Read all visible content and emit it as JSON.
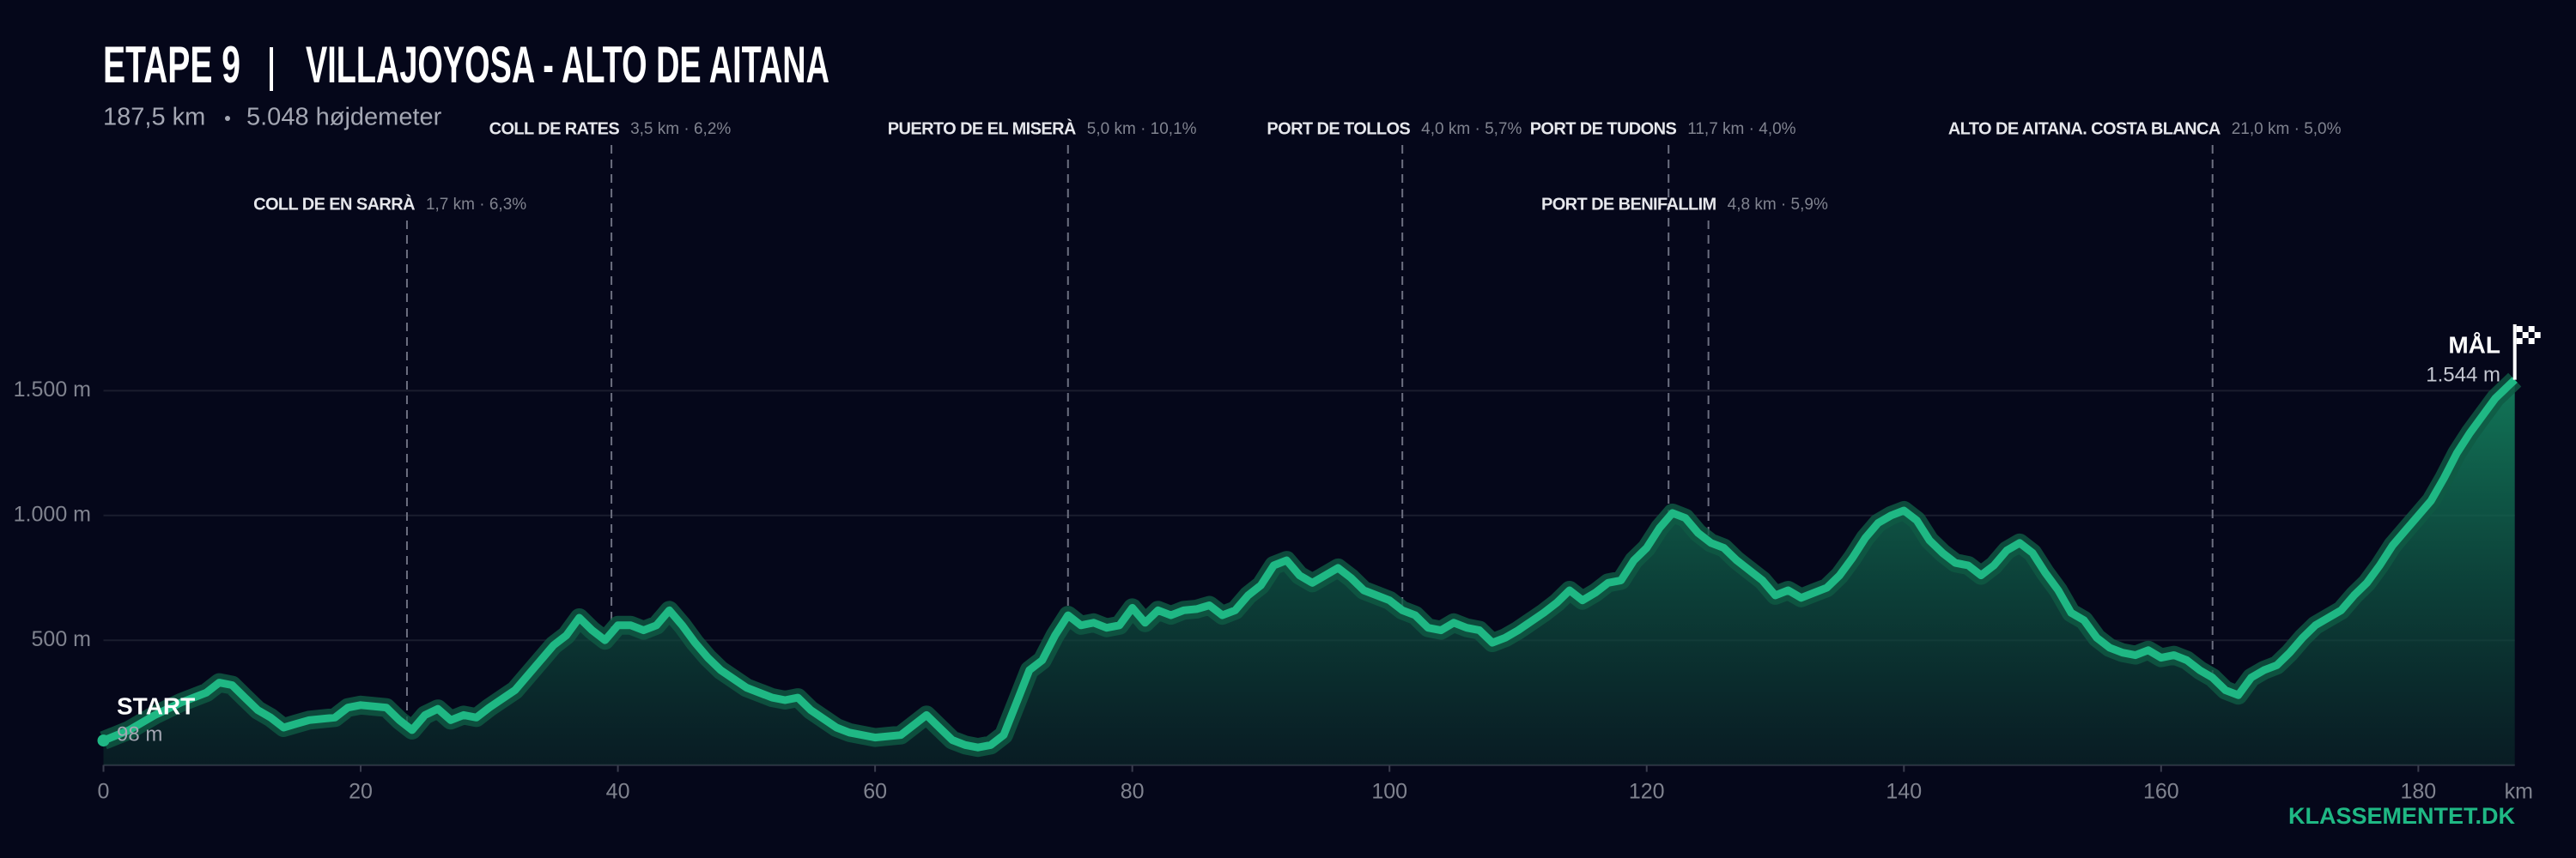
{
  "chart_data": {
    "type": "area",
    "title": {
      "stage": "ETAPE 9",
      "route": "VILLAJOYOSA - ALTO DE AITANA"
    },
    "subtitle": {
      "distance": "187,5 km",
      "climbing": "5.048 højdemeter"
    },
    "color": "#1fb884",
    "x": [
      0,
      2,
      4,
      6,
      8,
      9,
      10,
      11,
      12,
      13,
      14,
      15,
      16,
      18,
      19,
      20,
      22,
      23,
      24,
      25,
      26,
      27,
      28,
      29,
      30,
      32,
      34,
      35,
      36,
      37,
      38,
      39,
      40,
      41,
      42,
      43,
      44,
      45,
      46,
      47,
      48,
      50,
      52,
      53,
      54,
      55,
      57,
      58,
      60,
      62,
      64,
      65,
      66,
      67,
      68,
      69,
      70,
      71,
      72,
      73,
      74,
      75,
      76,
      77,
      78,
      79,
      80,
      81,
      82,
      83,
      84,
      85,
      86,
      87,
      88,
      89,
      90,
      91,
      92,
      93,
      94,
      95,
      96,
      97,
      98,
      100,
      101,
      102,
      103,
      104,
      105,
      106,
      107,
      108,
      109,
      110,
      112,
      113,
      114,
      115,
      116,
      117,
      118,
      119,
      120,
      121,
      122,
      123,
      124,
      125,
      126,
      127,
      128,
      129,
      130,
      131,
      132,
      133,
      134,
      135,
      136,
      137,
      138,
      139,
      140,
      141,
      142,
      143,
      144,
      145,
      146,
      147,
      148,
      149,
      150,
      151,
      152,
      153,
      154,
      155,
      156,
      157,
      158,
      159,
      160,
      161,
      162,
      163,
      164,
      165,
      166,
      167,
      168,
      169,
      170,
      171,
      172,
      173,
      174,
      175,
      176,
      177,
      178,
      179,
      180,
      181,
      182,
      183,
      184,
      185,
      186,
      187.5
    ],
    "values": [
      98,
      140,
      200,
      250,
      290,
      330,
      320,
      270,
      220,
      190,
      150,
      165,
      180,
      190,
      230,
      240,
      230,
      180,
      140,
      200,
      225,
      180,
      200,
      190,
      230,
      300,
      420,
      480,
      520,
      590,
      540,
      500,
      560,
      560,
      540,
      560,
      620,
      560,
      490,
      430,
      380,
      310,
      270,
      260,
      270,
      220,
      150,
      130,
      110,
      120,
      200,
      150,
      100,
      80,
      70,
      80,
      120,
      250,
      380,
      420,
      520,
      600,
      560,
      570,
      550,
      560,
      630,
      570,
      620,
      600,
      620,
      625,
      640,
      600,
      620,
      680,
      720,
      800,
      820,
      760,
      730,
      760,
      790,
      750,
      700,
      660,
      620,
      600,
      550,
      540,
      570,
      550,
      540,
      490,
      510,
      540,
      610,
      650,
      700,
      660,
      690,
      730,
      740,
      820,
      870,
      950,
      1010,
      990,
      930,
      890,
      870,
      820,
      780,
      740,
      680,
      700,
      670,
      690,
      710,
      760,
      830,
      910,
      970,
      1000,
      1020,
      980,
      900,
      850,
      810,
      800,
      760,
      800,
      860,
      890,
      850,
      770,
      700,
      610,
      580,
      510,
      470,
      450,
      440,
      460,
      430,
      440,
      420,
      380,
      350,
      300,
      280,
      350,
      380,
      400,
      450,
      510,
      560,
      590,
      620,
      680,
      730,
      800,
      880,
      940,
      1000,
      1060,
      1150,
      1250,
      1330,
      1400,
      1470,
      1544
    ],
    "xlim": [
      0,
      187.5
    ],
    "ylim": [
      0,
      2000
    ],
    "xticks": [
      0,
      20,
      40,
      60,
      80,
      100,
      120,
      140,
      160,
      180
    ],
    "x_label": "km",
    "yticks": [
      {
        "value": 500,
        "label": "500 m"
      },
      {
        "value": 1000,
        "label": "1.000 m"
      },
      {
        "value": 1500,
        "label": "1.500 m"
      }
    ],
    "grid": true,
    "start": {
      "label": "START",
      "value": 98,
      "value_label": "98 m"
    },
    "finish": {
      "label": "MÅL",
      "value": 1544,
      "value_label": "1.544 m"
    },
    "climbs": [
      {
        "name": "COLL DE EN SARRÀ",
        "detail": "1,7 km · 6,3%",
        "x": 23.6
      },
      {
        "name": "COLL DE RATES",
        "detail": "3,5 km · 6,2%",
        "x": 39.5
      },
      {
        "name": "PUERTO DE EL MISERÀ",
        "detail": "5,0 km · 10,1%",
        "x": 75.0
      },
      {
        "name": "PORT DE TOLLOS",
        "detail": "4,0 km · 5,7%",
        "x": 101.0
      },
      {
        "name": "PORT DE TUDONS",
        "detail": "11,7 km · 4,0%",
        "x": 121.7
      },
      {
        "name": "PORT DE BENIFALLIM",
        "detail": "4,8 km · 5,9%",
        "x": 124.8
      },
      {
        "name": "ALTO DE AITANA. COSTA BLANCA",
        "detail": "21,0 km · 5,0%",
        "x": 164.0
      }
    ],
    "brand": "KLASSEMENTET.DK"
  }
}
